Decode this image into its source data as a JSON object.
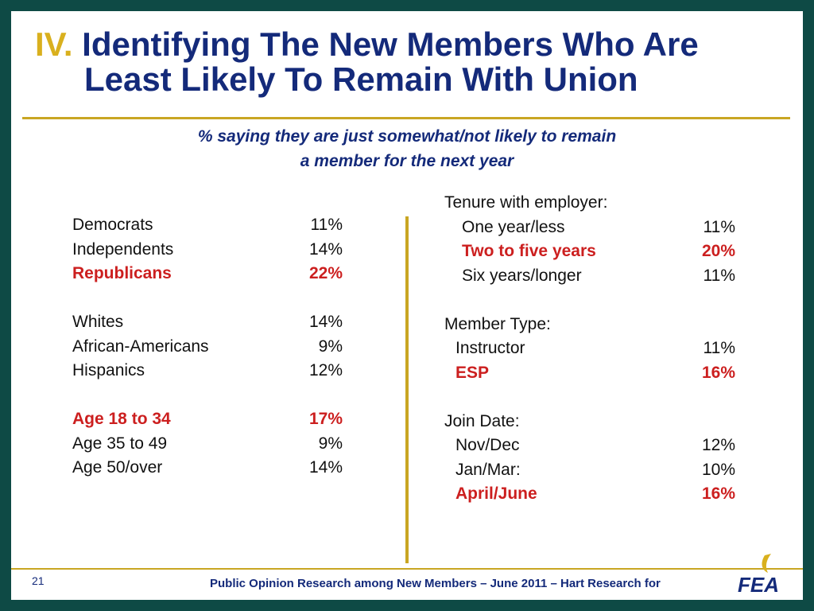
{
  "title": {
    "number": "IV.",
    "line1": "Identifying The New Members Who Are",
    "line2": "Least Likely To Remain With Union"
  },
  "subtitle": {
    "line1": "% saying they are just somewhat/not likely to remain",
    "line2": "a member for the next year"
  },
  "left": {
    "politics": [
      {
        "label": "Democrats",
        "value": "11%"
      },
      {
        "label": "Independents",
        "value": "14%"
      },
      {
        "label": "Republicans",
        "value": "22%"
      }
    ],
    "race": [
      {
        "label": "Whites",
        "value": "14%"
      },
      {
        "label": "African-Americans",
        "value": "9%"
      },
      {
        "label": "Hispanics",
        "value": "12%"
      }
    ],
    "age": [
      {
        "label": "Age 18 to 34",
        "value": "17%"
      },
      {
        "label": "Age 35 to 49",
        "value": "9%"
      },
      {
        "label": "Age 50/over",
        "value": "14%"
      }
    ]
  },
  "right": {
    "tenure": {
      "heading": "Tenure with employer:",
      "rows": [
        {
          "label": "One year/less",
          "value": "11%"
        },
        {
          "label": "Two to five years",
          "value": "20%"
        },
        {
          "label": "Six years/longer",
          "value": "11%"
        }
      ]
    },
    "member_type": {
      "heading": "Member Type:",
      "rows": [
        {
          "label": "Instructor",
          "value": "11%"
        },
        {
          "label": "ESP",
          "value": "16%"
        }
      ]
    },
    "join_date": {
      "heading": "Join Date:",
      "rows": [
        {
          "label": "Nov/Dec",
          "value": "12%"
        },
        {
          "label": "Jan/Mar:",
          "value": "10%"
        },
        {
          "label": "April/June",
          "value": "16%"
        }
      ]
    }
  },
  "footer": {
    "page_number": "21",
    "text": "Public Opinion Research among New Members – June 2011 – Hart Research for",
    "logo_text": "FEA"
  },
  "colors": {
    "background": "#0e4a45",
    "title": "#142a7a",
    "accent_gold": "#c9a623",
    "highlight_red": "#cc1f1f"
  }
}
